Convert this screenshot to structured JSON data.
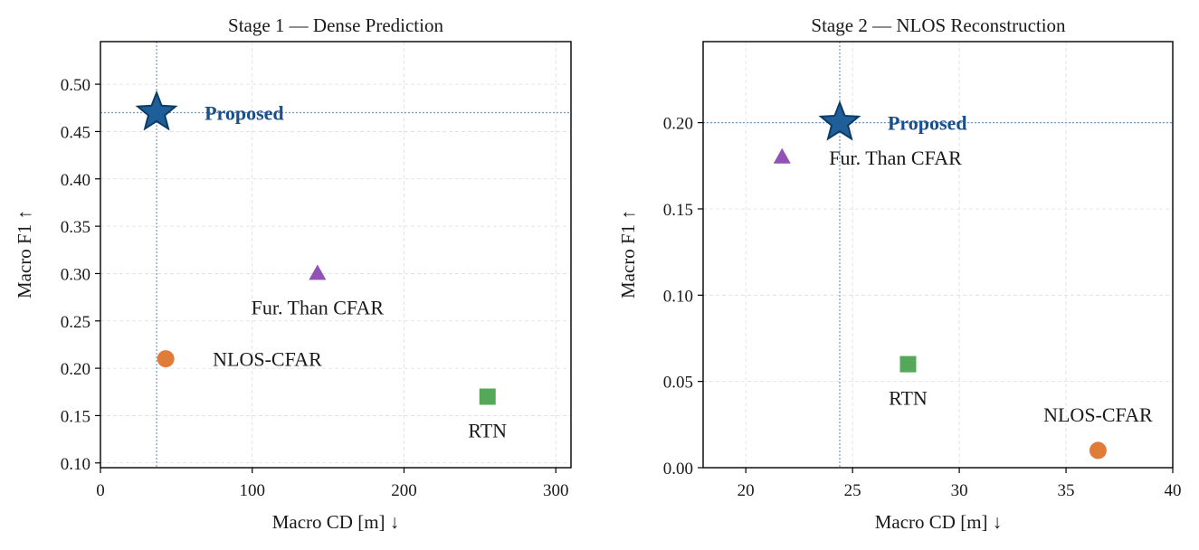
{
  "colors": {
    "proposed": "#1f5f99",
    "proposed_edge": "#0d3b66",
    "proposed_text": "#1b4f8a",
    "fur_than_cfar": "#9152b5",
    "nlos_cfar": "#e07c3a",
    "rtn": "#55a85a",
    "guide": "#6b9bc7",
    "grid": "#dddddd"
  },
  "chart_data": [
    {
      "type": "scatter",
      "title": "Stage 1 — Dense Prediction",
      "xlabel": "Macro CD [m] ↓",
      "ylabel": "Macro F1 ↑",
      "xlim": [
        0,
        310
      ],
      "ylim": [
        0.095,
        0.545
      ],
      "xticks": [
        0,
        100,
        200,
        300
      ],
      "yticks": [
        0.1,
        0.15,
        0.2,
        0.25,
        0.3,
        0.35,
        0.4,
        0.45,
        0.5
      ],
      "grid": true,
      "guide_lines": {
        "x": 37,
        "y": 0.47
      },
      "points": [
        {
          "name": "Proposed",
          "x": 37,
          "y": 0.47,
          "marker": "star",
          "color_key": "proposed",
          "label_pos": "right"
        },
        {
          "name": "Fur. Than CFAR",
          "x": 143,
          "y": 0.3,
          "marker": "triangle",
          "color_key": "fur_than_cfar",
          "label_pos": "below"
        },
        {
          "name": "NLOS-CFAR",
          "x": 43,
          "y": 0.21,
          "marker": "circle",
          "color_key": "nlos_cfar",
          "label_pos": "right"
        },
        {
          "name": "RTN",
          "x": 255,
          "y": 0.17,
          "marker": "square",
          "color_key": "rtn",
          "label_pos": "below"
        }
      ]
    },
    {
      "type": "scatter",
      "title": "Stage 2 — NLOS Reconstruction",
      "xlabel": "Macro CD [m] ↓",
      "ylabel": "Macro F1 ↑",
      "xlim": [
        18,
        40
      ],
      "ylim": [
        0,
        0.247
      ],
      "xticks": [
        20,
        25,
        30,
        35,
        40
      ],
      "yticks": [
        0.0,
        0.05,
        0.1,
        0.15,
        0.2
      ],
      "grid": true,
      "guide_lines": {
        "x": 24.4,
        "y": 0.2
      },
      "points": [
        {
          "name": "Proposed",
          "x": 24.4,
          "y": 0.2,
          "marker": "star",
          "color_key": "proposed",
          "label_pos": "right"
        },
        {
          "name": "Fur. Than CFAR",
          "x": 21.7,
          "y": 0.18,
          "marker": "triangle",
          "color_key": "fur_than_cfar",
          "label_pos": "right"
        },
        {
          "name": "RTN",
          "x": 27.6,
          "y": 0.06,
          "marker": "square",
          "color_key": "rtn",
          "label_pos": "below"
        },
        {
          "name": "NLOS-CFAR",
          "x": 36.5,
          "y": 0.01,
          "marker": "circle",
          "color_key": "nlos_cfar",
          "label_pos": "above"
        }
      ]
    }
  ]
}
